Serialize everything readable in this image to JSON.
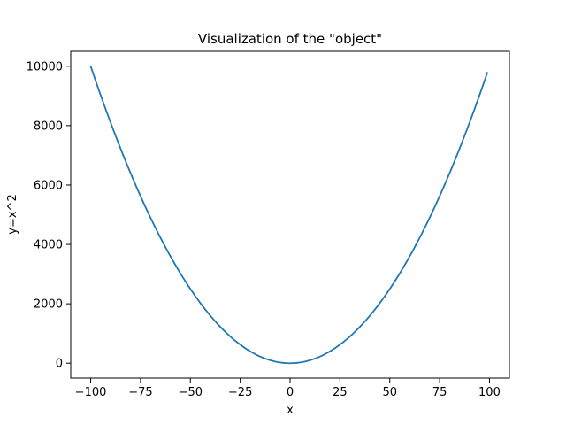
{
  "chart_data": {
    "type": "line",
    "title": "Visualization of the \"object\"",
    "xlabel": "x",
    "ylabel": "y=x^2",
    "xlim": [
      -110,
      110
    ],
    "ylim": [
      -500,
      10500
    ],
    "xticks": [
      -100,
      -75,
      -50,
      -25,
      0,
      25,
      50,
      75,
      100
    ],
    "xtick_labels": [
      "−100",
      "−75",
      "−50",
      "−25",
      "0",
      "25",
      "50",
      "75",
      "100"
    ],
    "yticks": [
      0,
      2000,
      4000,
      6000,
      8000,
      10000
    ],
    "ytick_labels": [
      "0",
      "2000",
      "4000",
      "6000",
      "8000",
      "10000"
    ],
    "grid": false,
    "series": [
      {
        "function": "y = x^2",
        "x_start": -100,
        "x_end": 99,
        "x_step": 1,
        "color": "#1f77b4"
      }
    ]
  }
}
